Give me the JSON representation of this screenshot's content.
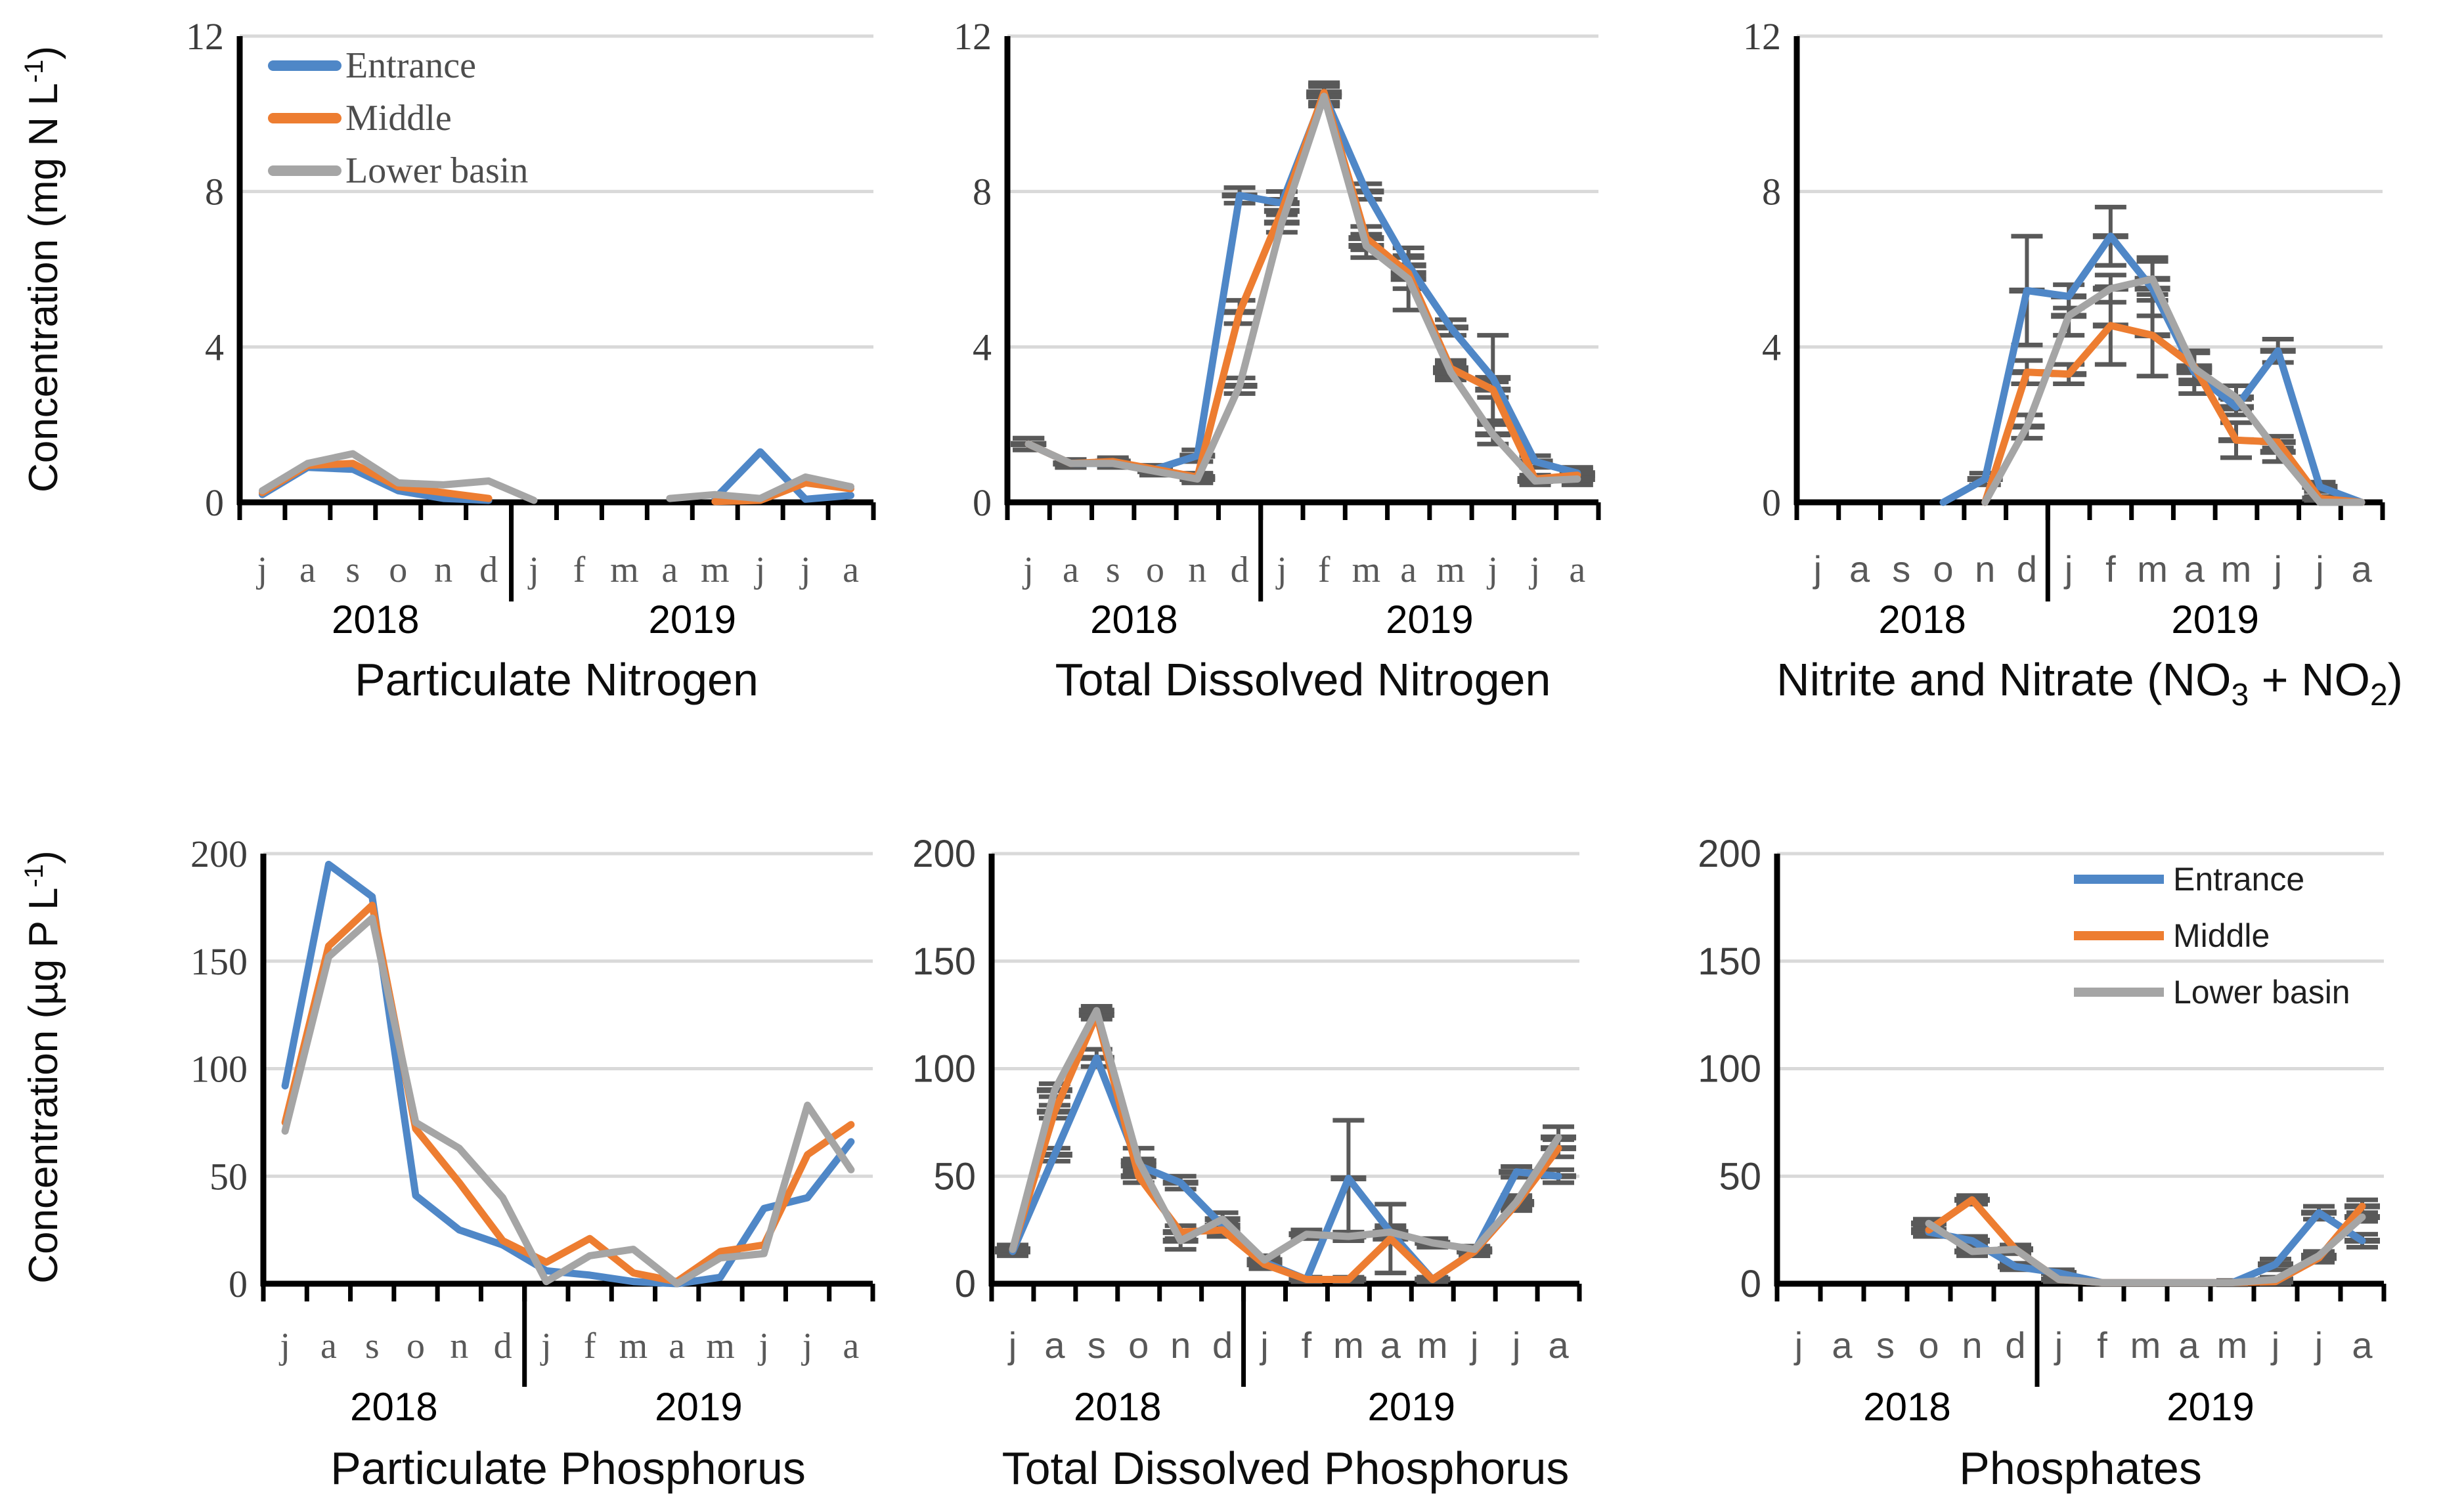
{
  "figure": {
    "ylabel_top": "Concentration (mg N L-1)",
    "ylabel_top_rich": [
      {
        "t": "Concentration (mg N L"
      },
      {
        "t": "-1",
        "sup": true
      },
      {
        "t": ")"
      }
    ],
    "ylabel_bottom": "Concentration (µg P L-1)",
    "ylabel_bottom_rich": [
      {
        "t": "Concentration (µg P L"
      },
      {
        "t": "-1",
        "sup": true
      },
      {
        "t": ")"
      }
    ],
    "months": [
      "j",
      "a",
      "s",
      "o",
      "n",
      "d",
      "j",
      "f",
      "m",
      "a",
      "m",
      "j",
      "j",
      "a"
    ],
    "years": [
      "2018",
      "2019"
    ],
    "legend_entries": [
      "Entrance",
      "Middle",
      "Lower basin"
    ],
    "colors": {
      "entrance": "#4f87c7",
      "middle": "#ED7D31",
      "lower_basin": "#A5A5A5",
      "error_bar": "#595959",
      "gridline": "#D9D9D9",
      "axis": "#000000",
      "month_label": "#595959",
      "tick_label": "#3d3d3d",
      "year_label": "#000000"
    }
  },
  "chart_data": [
    {
      "type": "line",
      "title": "Particulate Nitrogen",
      "ylim": [
        0,
        12
      ],
      "yticks": [
        0,
        4,
        8,
        12
      ],
      "y_unit": "mg N L-1",
      "x_unit": "month (Jul 2018 - Aug 2019)",
      "grid": true,
      "error_bars": false,
      "legend_position": "top-left",
      "series": [
        {
          "name": "Entrance",
          "values": [
            0.2,
            0.9,
            0.85,
            0.3,
            0.1,
            0.05,
            null,
            null,
            null,
            null,
            0.1,
            1.3,
            0.08,
            0.18
          ],
          "yerr": null
        },
        {
          "name": "Middle",
          "values": [
            0.25,
            0.95,
            1.0,
            0.4,
            0.25,
            0.1,
            null,
            null,
            null,
            null,
            0.02,
            0.05,
            0.5,
            0.35
          ],
          "yerr": null
        },
        {
          "name": "Lower basin",
          "values": [
            0.3,
            1.0,
            1.25,
            0.5,
            0.45,
            0.55,
            0.05,
            null,
            null,
            0.1,
            0.2,
            0.1,
            0.65,
            0.4
          ],
          "yerr": null
        }
      ]
    },
    {
      "type": "line",
      "title": "Total Dissolved Nitrogen",
      "ylim": [
        0,
        12
      ],
      "yticks": [
        0,
        4,
        8,
        12
      ],
      "y_unit": "mg N L-1",
      "x_unit": "month (Jul 2018 - Aug 2019)",
      "grid": true,
      "error_bars": true,
      "legend_position": null,
      "series": [
        {
          "name": "Entrance",
          "values": [
            1.5,
            1.0,
            1.0,
            0.85,
            1.2,
            7.9,
            7.7,
            10.5,
            8.0,
            6.1,
            4.5,
            3.2,
            1.05,
            0.75
          ],
          "yerr": [
            0.15,
            0.1,
            0.1,
            0.1,
            0.15,
            0.2,
            0.3,
            0.25,
            0.2,
            0.25,
            0.2,
            1.1,
            0.15,
            0.15
          ]
        },
        {
          "name": "Middle",
          "values": [
            1.5,
            1.0,
            1.05,
            0.85,
            0.65,
            4.9,
            7.5,
            10.55,
            6.8,
            5.9,
            3.45,
            2.9,
            0.6,
            0.7
          ],
          "yerr": [
            0.15,
            0.1,
            0.1,
            0.1,
            0.1,
            0.3,
            0.3,
            0.25,
            0.3,
            0.4,
            0.2,
            0.2,
            0.1,
            0.15
          ]
        },
        {
          "name": "Lower basin",
          "values": [
            1.5,
            1.0,
            1.0,
            0.8,
            0.6,
            3.0,
            7.2,
            10.45,
            6.6,
            5.75,
            3.35,
            1.75,
            0.55,
            0.6
          ],
          "yerr": [
            0.15,
            0.1,
            0.1,
            0.1,
            0.1,
            0.2,
            0.25,
            0.25,
            0.3,
            0.8,
            0.2,
            0.25,
            0.1,
            0.15
          ]
        }
      ]
    },
    {
      "type": "line",
      "title": "Nitrite and Nitrate (NO3 + NO2)",
      "title_rich": [
        {
          "t": "Nitrite and Nitrate (NO"
        },
        {
          "t": "3",
          "sub": true
        },
        {
          "t": " + NO"
        },
        {
          "t": "2",
          "sub": true
        },
        {
          "t": ")"
        }
      ],
      "ylim": [
        0,
        12
      ],
      "yticks": [
        0,
        4,
        8,
        12
      ],
      "y_unit": "mg N L-1",
      "x_unit": "month (Jul 2018 - Aug 2019)",
      "grid": true,
      "error_bars": true,
      "legend_position": null,
      "series": [
        {
          "name": "Entrance",
          "values": [
            null,
            null,
            null,
            0,
            0.6,
            5.45,
            5.3,
            6.85,
            5.5,
            3.35,
            2.45,
            3.9,
            0.4,
            0
          ],
          "yerr": [
            null,
            null,
            null,
            null,
            0.15,
            1.4,
            0.3,
            0.75,
            0.7,
            0.55,
            0.2,
            0.3,
            0.12,
            null
          ]
        },
        {
          "name": "Middle",
          "values": [
            null,
            null,
            null,
            null,
            0,
            3.35,
            3.3,
            4.55,
            4.3,
            3.5,
            1.6,
            1.55,
            0.1,
            0
          ],
          "yerr": [
            null,
            null,
            null,
            null,
            null,
            0.3,
            0.25,
            1.0,
            1.05,
            0.35,
            0.45,
            0.15,
            0.05,
            null
          ]
        },
        {
          "name": "Lower basin",
          "values": [
            null,
            null,
            null,
            null,
            0,
            1.95,
            4.8,
            5.5,
            5.75,
            3.45,
            2.7,
            1.3,
            0,
            0
          ],
          "yerr": [
            null,
            null,
            null,
            null,
            null,
            0.3,
            0.5,
            0.35,
            0.55,
            0.4,
            0.3,
            0.25,
            null,
            null
          ]
        }
      ]
    },
    {
      "type": "line",
      "title": "Particulate Phosphorus",
      "ylim": [
        0,
        200
      ],
      "yticks": [
        0,
        50,
        100,
        150,
        200
      ],
      "y_unit": "ug P L-1",
      "x_unit": "month (Jul 2018 - Aug 2019)",
      "grid": true,
      "error_bars": false,
      "legend_position": null,
      "series": [
        {
          "name": "Entrance",
          "values": [
            92,
            195,
            180,
            41,
            25,
            18,
            6,
            4,
            1,
            0,
            3,
            35,
            40,
            66
          ],
          "yerr": null
        },
        {
          "name": "Middle",
          "values": [
            75,
            157,
            176,
            72,
            47,
            20,
            10,
            21,
            5,
            1,
            15,
            18,
            60,
            74
          ],
          "yerr": null
        },
        {
          "name": "Lower basin",
          "values": [
            71,
            152,
            170,
            75,
            63,
            40,
            1,
            13,
            16,
            0,
            12,
            14,
            83,
            53
          ],
          "yerr": null
        }
      ]
    },
    {
      "type": "line",
      "title": "Total Dissolved Phosphorus",
      "ylim": [
        0,
        200
      ],
      "yticks": [
        0,
        50,
        100,
        150,
        200
      ],
      "y_unit": "ug P L-1",
      "x_unit": "month (Jul 2018 - Aug 2019)",
      "grid": true,
      "error_bars": true,
      "legend_position": null,
      "series": [
        {
          "name": "Entrance",
          "values": [
            15,
            60,
            105,
            55,
            47,
            27,
            10,
            2,
            49,
            24,
            2,
            15,
            52,
            50
          ],
          "yerr": [
            2,
            3,
            4,
            3,
            3,
            3,
            2,
            1,
            27,
            2,
            1,
            2,
            2.5,
            3
          ]
        },
        {
          "name": "Middle",
          "values": [
            16,
            80,
            125,
            50,
            24,
            25,
            9,
            2,
            2,
            21,
            2,
            15,
            37,
            63
          ],
          "yerr": [
            2,
            3,
            2,
            3,
            3,
            3,
            2,
            1,
            1,
            16,
            1,
            2,
            3,
            4
          ]
        },
        {
          "name": "Lower basin",
          "values": [
            16,
            90,
            127,
            57,
            20,
            30,
            11,
            23,
            22,
            24,
            19,
            16,
            38,
            68
          ],
          "yerr": [
            2,
            3,
            2,
            6,
            4,
            3,
            2,
            2,
            2,
            3,
            2,
            1.5,
            3,
            5
          ]
        }
      ]
    },
    {
      "type": "line",
      "title": "Phosphates",
      "ylim": [
        0,
        200
      ],
      "yticks": [
        0,
        50,
        100,
        150,
        200
      ],
      "y_unit": "ug P L-1",
      "x_unit": "month (Jul 2018 - Aug 2019)",
      "grid": true,
      "error_bars": true,
      "legend_position": "middle-right",
      "series": [
        {
          "name": "Entrance",
          "values": [
            null,
            null,
            null,
            24,
            20,
            8,
            5,
            0.5,
            0.5,
            0.5,
            0.5,
            9,
            33,
            20
          ],
          "yerr": [
            null,
            null,
            null,
            2,
            2,
            1.5,
            1.5,
            null,
            null,
            null,
            1,
            2.5,
            3,
            3
          ]
        },
        {
          "name": "Middle",
          "values": [
            null,
            null,
            null,
            25,
            39,
            16,
            2,
            0.5,
            0.5,
            0.5,
            0.5,
            1,
            12,
            36
          ],
          "yerr": [
            null,
            null,
            null,
            2,
            2,
            2,
            1,
            null,
            null,
            null,
            null,
            1,
            2,
            3
          ]
        },
        {
          "name": "Lower basin",
          "values": [
            null,
            null,
            null,
            28,
            15,
            16,
            2,
            0.5,
            0.5,
            0.5,
            0.5,
            2,
            13,
            31
          ],
          "yerr": [
            null,
            null,
            null,
            2,
            2,
            2,
            1,
            null,
            null,
            null,
            null,
            1,
            2,
            2
          ]
        }
      ]
    }
  ]
}
